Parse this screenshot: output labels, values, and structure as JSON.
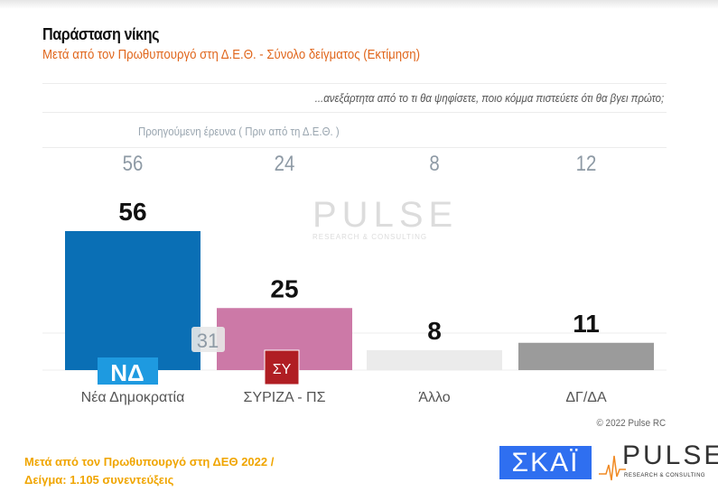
{
  "header": {
    "title": "Παράσταση νίκης",
    "subtitle": "Μετά από τον Πρωθυπουργό στη Δ.Ε.Θ.  - Σύνολο δείγματος   (Εκτίμηση)",
    "question": "...ανεξάρτητα από το τι θα ψηφίσετε, ποιο κόμμα πιστεύετε ότι θα βγει πρώτο;"
  },
  "previous": {
    "label": "Προηγούμενη έρευνα  (  Πριν από τη Δ.Ε.Θ. )",
    "values": [
      "56",
      "24",
      "8",
      "12"
    ]
  },
  "chart_data": {
    "type": "bar",
    "categories": [
      "Νέα Δημοκρατία",
      "ΣΥΡΙΖΑ - ΠΣ",
      "Άλλο",
      "ΔΓ/ΔΑ"
    ],
    "values": [
      56,
      25,
      8,
      11
    ],
    "colors": [
      "#0a6fb5",
      "#cc79a7",
      "#ebebeb",
      "#9b9b9b"
    ],
    "previous_values": [
      56,
      24,
      8,
      12
    ],
    "annotation": "31",
    "ylim": [
      0,
      60
    ]
  },
  "logos": {
    "nd": "ΝΔ",
    "syriza": "ΣΥ",
    "watermark": "PULSE",
    "watermark_sub": "RESEARCH & CONSULTING",
    "skai": "ΣΚΑΪ",
    "pulse": "PULSE",
    "pulse_sub": "RESEARCH & CONSULTING"
  },
  "footer": {
    "copyright": "© 2022 Pulse RC",
    "line1": "Μετά από τον Πρωθυπουργό στη ΔΕΘ  2022  /",
    "line2": "Δείγμα:  1.105 συνεντεύξεις"
  }
}
